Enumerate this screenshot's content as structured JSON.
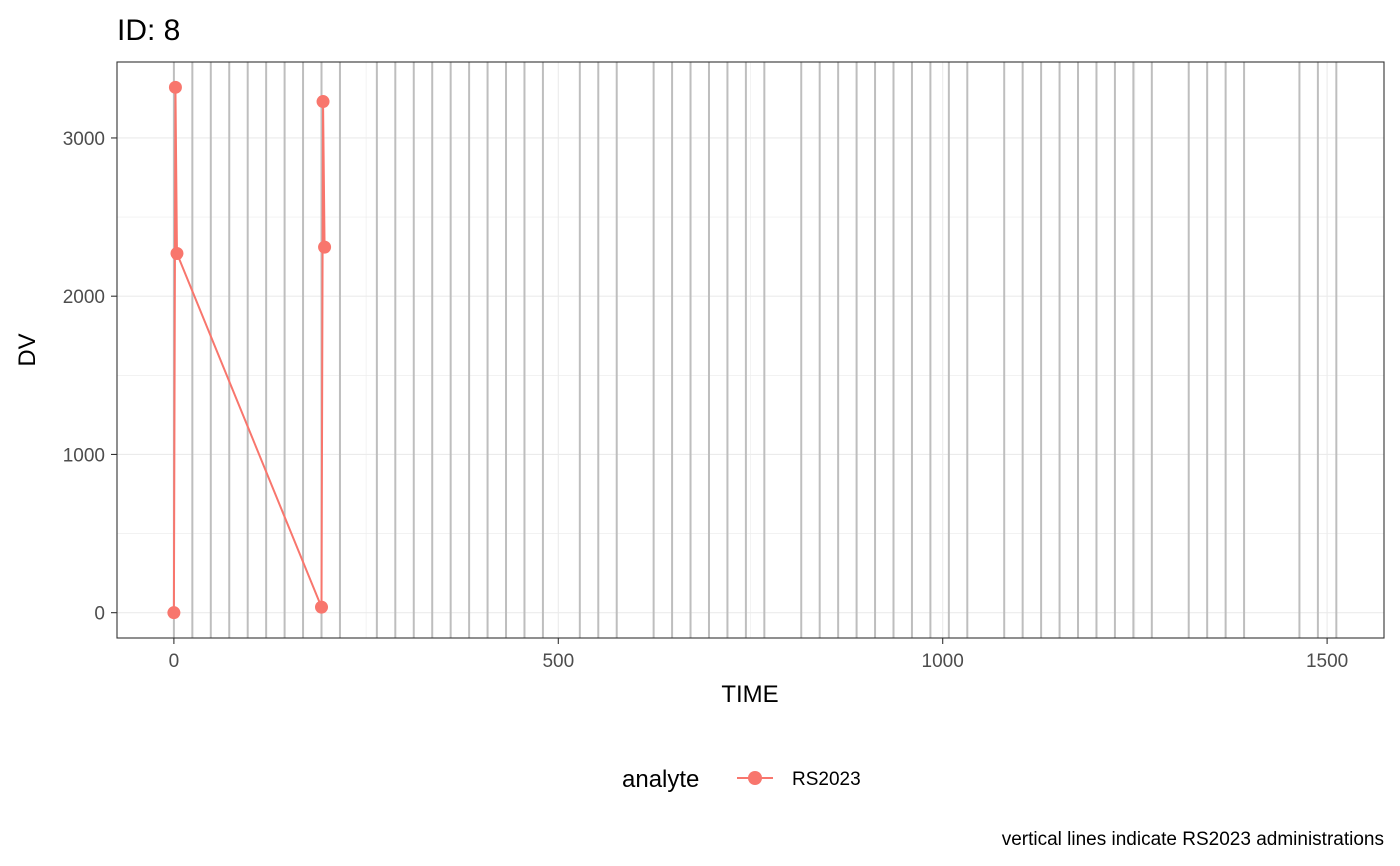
{
  "chart_data": {
    "type": "line",
    "title": "ID: 8",
    "xlabel": "TIME",
    "ylabel": "DV",
    "xlim": [
      -74,
      1574
    ],
    "ylim": [
      -160,
      3480
    ],
    "x_ticks": [
      0,
      500,
      1000,
      1500
    ],
    "x_tick_labels": [
      "0",
      "500",
      "1000",
      "1500"
    ],
    "y_ticks": [
      0,
      1000,
      2000,
      3000
    ],
    "y_tick_labels": [
      "0",
      "1000",
      "2000",
      "3000"
    ],
    "grid": true,
    "legend": {
      "title": "analyte",
      "position": "bottom",
      "entries": [
        "RS2023"
      ]
    },
    "series": [
      {
        "name": "RS2023",
        "color": "#f8766d",
        "x": [
          0,
          2,
          4,
          192,
          194,
          196
        ],
        "y": [
          0,
          3320,
          2270,
          35,
          3230,
          2310
        ]
      }
    ],
    "administration_lines": {
      "color": "#bebebe",
      "x": [
        0,
        24,
        48,
        72,
        96,
        120,
        144,
        168,
        192,
        216,
        264,
        288,
        312,
        336,
        360,
        384,
        408,
        432,
        456,
        480,
        528,
        552,
        576,
        624,
        648,
        672,
        696,
        720,
        744,
        768,
        816,
        840,
        864,
        888,
        912,
        936,
        960,
        984,
        1008,
        1032,
        1080,
        1104,
        1128,
        1152,
        1176,
        1200,
        1224,
        1248,
        1272,
        1320,
        1344,
        1368,
        1392,
        1464,
        1488,
        1512
      ]
    },
    "caption": "vertical lines indicate RS2023 administrations"
  }
}
